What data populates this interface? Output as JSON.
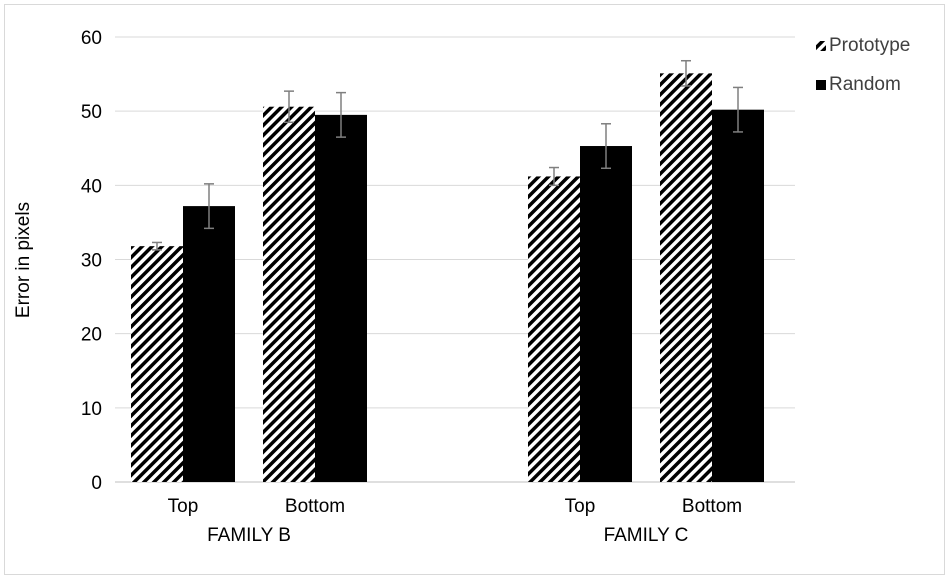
{
  "chart_data": {
    "type": "bar",
    "title": "",
    "xlabel": "",
    "ylabel": "Error in pixels",
    "ylim": [
      0,
      60
    ],
    "yticks": [
      0,
      10,
      20,
      30,
      40,
      50,
      60
    ],
    "grid": true,
    "legend_position": "top-right",
    "groups": [
      {
        "label": "FAMILY B",
        "categories": [
          "Top",
          "Bottom"
        ]
      },
      {
        "label": "FAMILY C",
        "categories": [
          "Top",
          "Bottom"
        ]
      }
    ],
    "series": [
      {
        "name": "Prototype",
        "pattern": "diagonal-stripes",
        "values": [
          31.8,
          50.6,
          41.2,
          55.1
        ],
        "errors": [
          0.5,
          2.1,
          1.2,
          1.7
        ]
      },
      {
        "name": "Random",
        "pattern": "solid",
        "color": "#000000",
        "values": [
          37.2,
          49.5,
          45.3,
          50.2
        ],
        "errors": [
          3.0,
          3.0,
          3.0,
          3.0
        ]
      }
    ]
  }
}
